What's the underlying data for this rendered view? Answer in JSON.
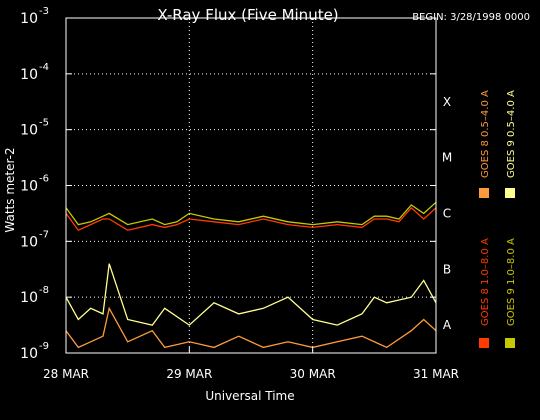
{
  "chart_data": {
    "type": "line",
    "title": "X-Ray Flux (Five Minute)",
    "begin_label": "BEGIN: 3/28/1998 0000",
    "xlabel": "Universal Time",
    "ylabel": "Watts meter-2",
    "yscale": "log",
    "ylim_exp": [
      -9,
      -3
    ],
    "y_ticks": [
      {
        "exp": -9,
        "label": "10",
        "sup": "-9"
      },
      {
        "exp": -8,
        "label": "10",
        "sup": "-8"
      },
      {
        "exp": -7,
        "label": "10",
        "sup": "-7"
      },
      {
        "exp": -6,
        "label": "10",
        "sup": "-6"
      },
      {
        "exp": -5,
        "label": "10",
        "sup": "-5"
      },
      {
        "exp": -4,
        "label": "10",
        "sup": "-4"
      },
      {
        "exp": -3,
        "label": "10",
        "sup": "-3"
      }
    ],
    "x_ticks": [
      {
        "day": 0,
        "label": "28 MAR"
      },
      {
        "day": 1,
        "label": "29 MAR"
      },
      {
        "day": 2,
        "label": "30 MAR"
      },
      {
        "day": 3,
        "label": "31 MAR"
      }
    ],
    "xlim_days": [
      0,
      3
    ],
    "flare_classes": [
      {
        "label": "X",
        "exp": -4
      },
      {
        "label": "M",
        "exp": -5
      },
      {
        "label": "C",
        "exp": -6
      },
      {
        "label": "B",
        "exp": -7
      },
      {
        "label": "A",
        "exp": -8
      }
    ],
    "grid": "dotted",
    "series": [
      {
        "name": "GOES 8 1.0–8.0 A",
        "color": "#ff3c00",
        "days": [
          0.0,
          0.1,
          0.2,
          0.3,
          0.35,
          0.5,
          0.7,
          0.8,
          0.9,
          1.0,
          1.2,
          1.4,
          1.6,
          1.8,
          2.0,
          2.2,
          2.4,
          2.5,
          2.6,
          2.7,
          2.8,
          2.9,
          3.0
        ],
        "log_values": [
          -6.5,
          -6.8,
          -6.7,
          -6.6,
          -6.6,
          -6.8,
          -6.7,
          -6.75,
          -6.7,
          -6.6,
          -6.65,
          -6.7,
          -6.6,
          -6.7,
          -6.75,
          -6.7,
          -6.75,
          -6.6,
          -6.6,
          -6.65,
          -6.4,
          -6.6,
          -6.4
        ]
      },
      {
        "name": "GOES 8 0.5–4.0 A",
        "color": "#ff9a3c",
        "days": [
          0.0,
          0.1,
          0.2,
          0.3,
          0.35,
          0.5,
          0.7,
          0.8,
          1.0,
          1.2,
          1.4,
          1.6,
          1.8,
          2.0,
          2.2,
          2.4,
          2.6,
          2.8,
          2.9,
          3.0
        ],
        "log_values": [
          -8.6,
          -8.9,
          -8.8,
          -8.7,
          -8.2,
          -8.8,
          -8.6,
          -8.9,
          -8.8,
          -8.9,
          -8.7,
          -8.9,
          -8.8,
          -8.9,
          -8.8,
          -8.7,
          -8.9,
          -8.6,
          -8.4,
          -8.6
        ]
      },
      {
        "name": "GOES 9 1.0–8.0 A",
        "color": "#c8c800",
        "days": [
          0.0,
          0.1,
          0.2,
          0.3,
          0.35,
          0.5,
          0.7,
          0.8,
          0.9,
          1.0,
          1.2,
          1.4,
          1.6,
          1.8,
          2.0,
          2.2,
          2.4,
          2.5,
          2.6,
          2.7,
          2.8,
          2.9,
          3.0
        ],
        "log_values": [
          -6.4,
          -6.7,
          -6.65,
          -6.55,
          -6.5,
          -6.7,
          -6.6,
          -6.7,
          -6.65,
          -6.5,
          -6.6,
          -6.65,
          -6.55,
          -6.65,
          -6.7,
          -6.65,
          -6.7,
          -6.55,
          -6.55,
          -6.6,
          -6.35,
          -6.5,
          -6.3
        ]
      },
      {
        "name": "GOES 9 0.5–4.0 A",
        "color": "#ffff90",
        "days": [
          0.0,
          0.1,
          0.2,
          0.3,
          0.35,
          0.5,
          0.7,
          0.8,
          1.0,
          1.2,
          1.4,
          1.6,
          1.8,
          2.0,
          2.2,
          2.4,
          2.5,
          2.6,
          2.8,
          2.9,
          3.0
        ],
        "log_values": [
          -8.0,
          -8.4,
          -8.2,
          -8.3,
          -7.4,
          -8.4,
          -8.5,
          -8.2,
          -8.5,
          -8.1,
          -8.3,
          -8.2,
          -8.0,
          -8.4,
          -8.5,
          -8.3,
          -8.0,
          -8.1,
          -8.0,
          -7.7,
          -8.1
        ]
      }
    ]
  }
}
